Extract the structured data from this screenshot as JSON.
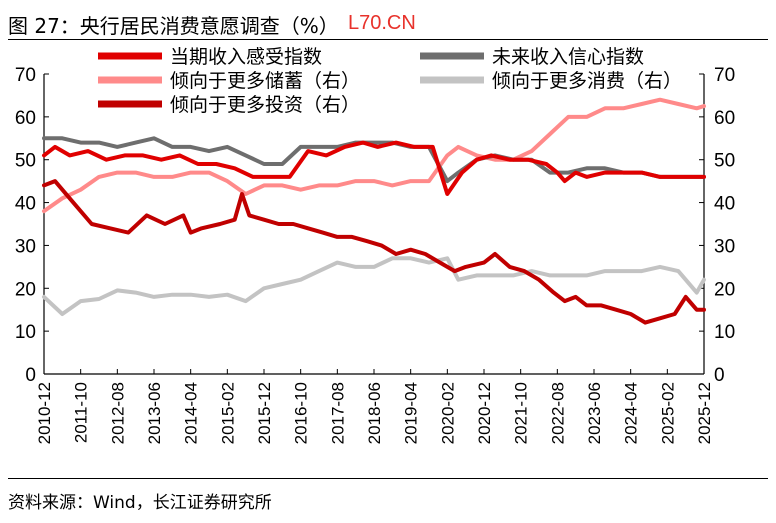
{
  "figure": {
    "title": "图 27：央行居民消费意愿调查（%）",
    "watermark": "L70.CN",
    "source": "资料来源：Wind，长江证券研究所"
  },
  "chart_data": {
    "type": "line",
    "title": "央行居民消费意愿调查（%）",
    "y_left": {
      "min": 0,
      "max": 70,
      "ticks": [
        0,
        10,
        20,
        30,
        40,
        50,
        60,
        70
      ]
    },
    "y_right": {
      "min": 0,
      "max": 70,
      "ticks": [
        0,
        10,
        20,
        30,
        40,
        50,
        60,
        70
      ]
    },
    "x_tick_labels": [
      "2010-12",
      "2011-10",
      "2012-08",
      "2013-06",
      "2014-04",
      "2015-02",
      "2015-12",
      "2016-10",
      "2017-08",
      "2018-06",
      "2019-04",
      "2020-02",
      "2020-12",
      "2021-10",
      "2022-08",
      "2023-06",
      "2024-04",
      "2025-02",
      "2025-12"
    ],
    "x_tick_index": [
      0,
      10,
      20,
      30,
      40,
      50,
      60,
      70,
      80,
      90,
      100,
      110,
      120,
      130,
      140,
      150,
      160,
      170,
      180
    ],
    "x_count": 181,
    "legend": [
      {
        "name": "当期收入感受指数",
        "color": "#e00000",
        "width": 4,
        "axis": "left"
      },
      {
        "name": "未来收入信心指数",
        "color": "#6e6e6e",
        "width": 4,
        "axis": "left"
      },
      {
        "name": "倾向于更多储蓄（右）",
        "color": "#ff8a8a",
        "width": 4,
        "axis": "right"
      },
      {
        "name": "倾向于更多消费（右）",
        "color": "#c3c3c3",
        "width": 4,
        "axis": "right"
      },
      {
        "name": "倾向于更多投资（右）",
        "color": "#c00000",
        "width": 4,
        "axis": "right"
      }
    ],
    "series": [
      {
        "name": "倾向于更多消费（右）",
        "color": "#c3c3c3",
        "points": [
          [
            0,
            18
          ],
          [
            5,
            14
          ],
          [
            10,
            17
          ],
          [
            15,
            17.5
          ],
          [
            20,
            19.5
          ],
          [
            25,
            19
          ],
          [
            30,
            18
          ],
          [
            35,
            18.5
          ],
          [
            40,
            18.5
          ],
          [
            45,
            18
          ],
          [
            50,
            18.5
          ],
          [
            55,
            17
          ],
          [
            60,
            20
          ],
          [
            65,
            21
          ],
          [
            70,
            22
          ],
          [
            75,
            24
          ],
          [
            80,
            26
          ],
          [
            85,
            25
          ],
          [
            90,
            25
          ],
          [
            95,
            27
          ],
          [
            100,
            27
          ],
          [
            105,
            26
          ],
          [
            110,
            27
          ],
          [
            113,
            22
          ],
          [
            118,
            23
          ],
          [
            123,
            23
          ],
          [
            128,
            23
          ],
          [
            133,
            24
          ],
          [
            138,
            23
          ],
          [
            143,
            23
          ],
          [
            148,
            23
          ],
          [
            153,
            24
          ],
          [
            158,
            24
          ],
          [
            163,
            24
          ],
          [
            168,
            25
          ],
          [
            173,
            24
          ],
          [
            178,
            19
          ],
          [
            180,
            22
          ]
        ]
      },
      {
        "name": "倾向于更多储蓄（右）",
        "color": "#ff8a8a",
        "points": [
          [
            0,
            38
          ],
          [
            5,
            41
          ],
          [
            10,
            43
          ],
          [
            15,
            46
          ],
          [
            20,
            47
          ],
          [
            25,
            47
          ],
          [
            30,
            46
          ],
          [
            35,
            46
          ],
          [
            40,
            47
          ],
          [
            45,
            47
          ],
          [
            50,
            45
          ],
          [
            55,
            42
          ],
          [
            60,
            44
          ],
          [
            65,
            44
          ],
          [
            70,
            43
          ],
          [
            75,
            44
          ],
          [
            80,
            44
          ],
          [
            85,
            45
          ],
          [
            90,
            45
          ],
          [
            95,
            44
          ],
          [
            100,
            45
          ],
          [
            105,
            45
          ],
          [
            110,
            51
          ],
          [
            113,
            53
          ],
          [
            118,
            51
          ],
          [
            123,
            50
          ],
          [
            128,
            50
          ],
          [
            133,
            52
          ],
          [
            138,
            56
          ],
          [
            143,
            60
          ],
          [
            148,
            60
          ],
          [
            153,
            62
          ],
          [
            158,
            62
          ],
          [
            163,
            63
          ],
          [
            168,
            64
          ],
          [
            173,
            63
          ],
          [
            178,
            62
          ],
          [
            180,
            62.5
          ]
        ]
      },
      {
        "name": "倾向于更多投资（右）",
        "color": "#c00000",
        "points": [
          [
            0,
            44
          ],
          [
            3,
            45
          ],
          [
            8,
            40
          ],
          [
            13,
            35
          ],
          [
            18,
            34
          ],
          [
            23,
            33
          ],
          [
            28,
            37
          ],
          [
            33,
            35
          ],
          [
            38,
            37
          ],
          [
            40,
            33
          ],
          [
            43,
            34
          ],
          [
            48,
            35
          ],
          [
            52,
            36
          ],
          [
            54,
            42
          ],
          [
            56,
            37
          ],
          [
            60,
            36
          ],
          [
            64,
            35
          ],
          [
            68,
            35
          ],
          [
            72,
            34
          ],
          [
            76,
            33
          ],
          [
            80,
            32
          ],
          [
            84,
            32
          ],
          [
            88,
            31
          ],
          [
            92,
            30
          ],
          [
            96,
            28
          ],
          [
            100,
            29
          ],
          [
            104,
            28
          ],
          [
            108,
            26
          ],
          [
            112,
            24
          ],
          [
            115,
            25
          ],
          [
            120,
            26
          ],
          [
            123,
            28
          ],
          [
            127,
            25
          ],
          [
            131,
            24
          ],
          [
            135,
            22
          ],
          [
            139,
            19
          ],
          [
            142,
            17
          ],
          [
            145,
            18
          ],
          [
            148,
            16
          ],
          [
            152,
            16
          ],
          [
            156,
            15
          ],
          [
            160,
            14
          ],
          [
            164,
            12
          ],
          [
            168,
            13
          ],
          [
            172,
            14
          ],
          [
            175,
            18
          ],
          [
            178,
            15
          ],
          [
            180,
            15
          ]
        ]
      },
      {
        "name": "未来收入信心指数",
        "color": "#6e6e6e",
        "points": [
          [
            0,
            55
          ],
          [
            5,
            55
          ],
          [
            10,
            54
          ],
          [
            15,
            54
          ],
          [
            20,
            53
          ],
          [
            25,
            54
          ],
          [
            30,
            55
          ],
          [
            35,
            53
          ],
          [
            40,
            53
          ],
          [
            45,
            52
          ],
          [
            50,
            53
          ],
          [
            55,
            51
          ],
          [
            60,
            49
          ],
          [
            65,
            49
          ],
          [
            70,
            53
          ],
          [
            75,
            53
          ],
          [
            80,
            53
          ],
          [
            85,
            54
          ],
          [
            90,
            54
          ],
          [
            95,
            54
          ],
          [
            100,
            53
          ],
          [
            105,
            53
          ],
          [
            110,
            45
          ],
          [
            113,
            47
          ],
          [
            118,
            50
          ],
          [
            123,
            51
          ],
          [
            128,
            50
          ],
          [
            133,
            50
          ],
          [
            138,
            47
          ],
          [
            143,
            47
          ],
          [
            148,
            48
          ],
          [
            153,
            48
          ],
          [
            158,
            47
          ],
          [
            163,
            47
          ],
          [
            168,
            46
          ],
          [
            173,
            46
          ],
          [
            178,
            46
          ],
          [
            180,
            46
          ]
        ]
      },
      {
        "name": "当期收入感受指数",
        "color": "#e00000",
        "points": [
          [
            0,
            51
          ],
          [
            3,
            53
          ],
          [
            7,
            51
          ],
          [
            12,
            52
          ],
          [
            17,
            50
          ],
          [
            22,
            51
          ],
          [
            27,
            51
          ],
          [
            32,
            50
          ],
          [
            37,
            51
          ],
          [
            42,
            49
          ],
          [
            47,
            49
          ],
          [
            52,
            48
          ],
          [
            57,
            46
          ],
          [
            62,
            46
          ],
          [
            67,
            46
          ],
          [
            72,
            52
          ],
          [
            77,
            51
          ],
          [
            82,
            53
          ],
          [
            87,
            54
          ],
          [
            91,
            53
          ],
          [
            96,
            54
          ],
          [
            101,
            53
          ],
          [
            106,
            53
          ],
          [
            110,
            42
          ],
          [
            114,
            47
          ],
          [
            118,
            50
          ],
          [
            122,
            51
          ],
          [
            127,
            50
          ],
          [
            132,
            50
          ],
          [
            137,
            49
          ],
          [
            140,
            47
          ],
          [
            142,
            45
          ],
          [
            145,
            47
          ],
          [
            148,
            46
          ],
          [
            153,
            47
          ],
          [
            158,
            47
          ],
          [
            163,
            47
          ],
          [
            168,
            46
          ],
          [
            173,
            46
          ],
          [
            178,
            46
          ],
          [
            180,
            46
          ]
        ]
      }
    ]
  }
}
